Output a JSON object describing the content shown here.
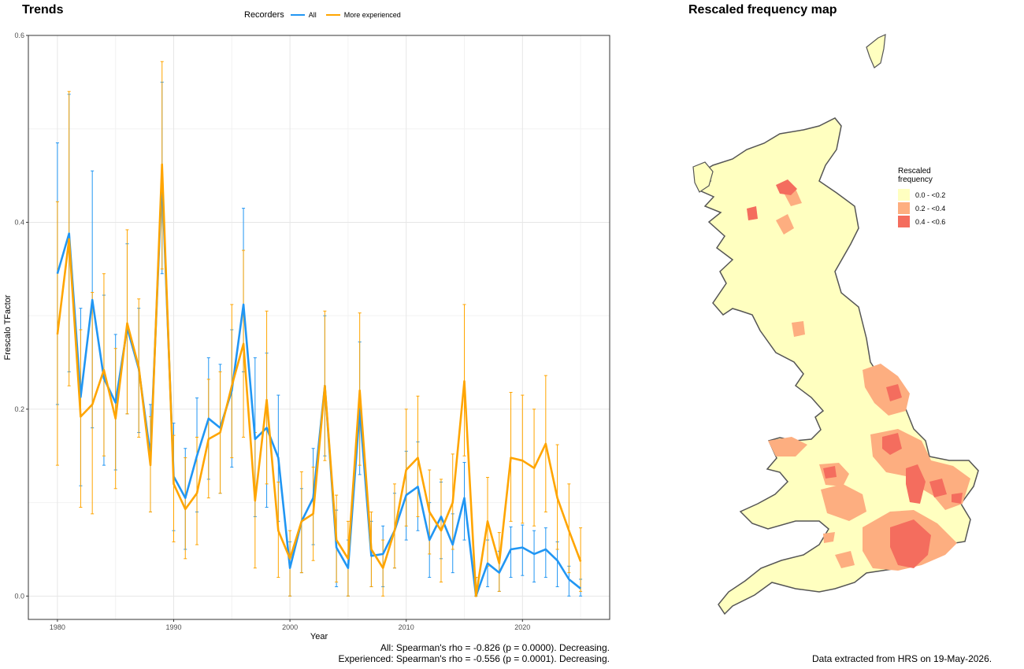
{
  "trend_title": "Trends",
  "map_title": "Rescaled frequency map",
  "legend": {
    "title": "Recorders",
    "items": [
      {
        "label": "All",
        "color": "#2196f3"
      },
      {
        "label": "More experienced",
        "color": "#ffa500"
      }
    ]
  },
  "stats": {
    "all": "All: Spearman's rho = -0.826 (p = 0.0000). Decreasing.",
    "experienced": "Experienced: Spearman's rho = -0.556 (p = 0.0001). Decreasing."
  },
  "footer": "Data extracted from HRS on 19-May-2026.",
  "map_legend": {
    "title_line1": "Rescaled",
    "title_line2": "frequency",
    "items": [
      {
        "label": "0.0 - <0.2",
        "color": "#ffffc0"
      },
      {
        "label": "0.2 - <0.4",
        "color": "#fdae80"
      },
      {
        "label": "0.4 - <0.6",
        "color": "#f46d5e"
      }
    ]
  },
  "chart_data": {
    "type": "line",
    "xlabel": "Year",
    "ylabel": "Frescalo TFactor",
    "xlim": [
      1977.5,
      2027.5
    ],
    "ylim": [
      -0.025,
      0.6
    ],
    "xticks": [
      1980,
      1990,
      2000,
      2010,
      2020
    ],
    "yticks": [
      0.0,
      0.2,
      0.4,
      0.6
    ],
    "grid": true,
    "x": [
      1980,
      1981,
      1982,
      1983,
      1984,
      1985,
      1986,
      1987,
      1988,
      1989,
      1990,
      1991,
      1992,
      1993,
      1994,
      1995,
      1996,
      1997,
      1998,
      1999,
      2000,
      2001,
      2002,
      2003,
      2004,
      2005,
      2006,
      2007,
      2008,
      2009,
      2010,
      2011,
      2012,
      2013,
      2014,
      2015,
      2016,
      2017,
      2018,
      2019,
      2020,
      2021,
      2022,
      2023,
      2024,
      2025
    ],
    "series": [
      {
        "name": "All",
        "color": "#2196f3",
        "values": [
          0.345,
          0.388,
          0.213,
          0.317,
          0.233,
          0.207,
          0.287,
          0.243,
          0.15,
          0.448,
          0.128,
          0.105,
          0.15,
          0.19,
          0.18,
          0.22,
          0.312,
          0.168,
          0.18,
          0.148,
          0.03,
          0.08,
          0.105,
          0.225,
          0.052,
          0.03,
          0.2,
          0.043,
          0.045,
          0.07,
          0.108,
          0.117,
          0.06,
          0.085,
          0.055,
          0.105,
          0.0,
          0.035,
          0.025,
          0.05,
          0.052,
          0.045,
          0.05,
          0.038,
          0.018,
          0.008
        ],
        "lower": [
          0.205,
          0.24,
          0.118,
          0.18,
          0.14,
          0.135,
          0.195,
          0.175,
          0.09,
          0.345,
          0.07,
          0.05,
          0.09,
          0.125,
          0.11,
          0.138,
          0.24,
          0.085,
          0.095,
          0.08,
          0.0,
          0.025,
          0.055,
          0.15,
          0.01,
          0.0,
          0.13,
          0.01,
          0.01,
          0.03,
          0.06,
          0.07,
          0.02,
          0.04,
          0.025,
          0.06,
          0.0,
          0.01,
          0.005,
          0.02,
          0.022,
          0.015,
          0.02,
          0.01,
          0.0,
          0.0
        ],
        "upper": [
          0.485,
          0.537,
          0.308,
          0.455,
          0.322,
          0.28,
          0.377,
          0.308,
          0.205,
          0.55,
          0.185,
          0.158,
          0.212,
          0.255,
          0.248,
          0.285,
          0.415,
          0.255,
          0.26,
          0.215,
          0.058,
          0.115,
          0.158,
          0.3,
          0.092,
          0.06,
          0.272,
          0.08,
          0.075,
          0.11,
          0.155,
          0.165,
          0.1,
          0.122,
          0.088,
          0.143,
          0.02,
          0.06,
          0.048,
          0.074,
          0.076,
          0.07,
          0.073,
          0.058,
          0.032,
          0.018
        ]
      },
      {
        "name": "More experienced",
        "color": "#ffa500",
        "values": [
          0.28,
          0.382,
          0.192,
          0.205,
          0.242,
          0.19,
          0.292,
          0.245,
          0.14,
          0.462,
          0.12,
          0.093,
          0.11,
          0.168,
          0.175,
          0.225,
          0.27,
          0.102,
          0.21,
          0.07,
          0.04,
          0.08,
          0.088,
          0.225,
          0.06,
          0.04,
          0.22,
          0.05,
          0.03,
          0.07,
          0.135,
          0.148,
          0.09,
          0.07,
          0.1,
          0.23,
          0.0,
          0.08,
          0.035,
          0.148,
          0.145,
          0.137,
          0.163,
          0.105,
          0.07,
          0.037
        ],
        "lower": [
          0.14,
          0.225,
          0.095,
          0.088,
          0.15,
          0.115,
          0.195,
          0.17,
          0.09,
          0.35,
          0.058,
          0.04,
          0.055,
          0.105,
          0.11,
          0.148,
          0.17,
          0.03,
          0.12,
          0.02,
          0.0,
          0.025,
          0.038,
          0.145,
          0.015,
          0.0,
          0.14,
          0.01,
          0.0,
          0.03,
          0.075,
          0.085,
          0.045,
          0.015,
          0.05,
          0.15,
          0.0,
          0.032,
          0.005,
          0.08,
          0.078,
          0.075,
          0.09,
          0.05,
          0.025,
          0.005
        ],
        "upper": [
          0.422,
          0.54,
          0.285,
          0.325,
          0.345,
          0.265,
          0.392,
          0.318,
          0.192,
          0.572,
          0.172,
          0.148,
          0.17,
          0.232,
          0.24,
          0.312,
          0.37,
          0.175,
          0.305,
          0.122,
          0.07,
          0.133,
          0.138,
          0.305,
          0.108,
          0.08,
          0.303,
          0.09,
          0.06,
          0.12,
          0.2,
          0.214,
          0.135,
          0.125,
          0.152,
          0.312,
          0.02,
          0.127,
          0.068,
          0.218,
          0.215,
          0.2,
          0.236,
          0.162,
          0.12,
          0.073
        ]
      }
    ]
  }
}
